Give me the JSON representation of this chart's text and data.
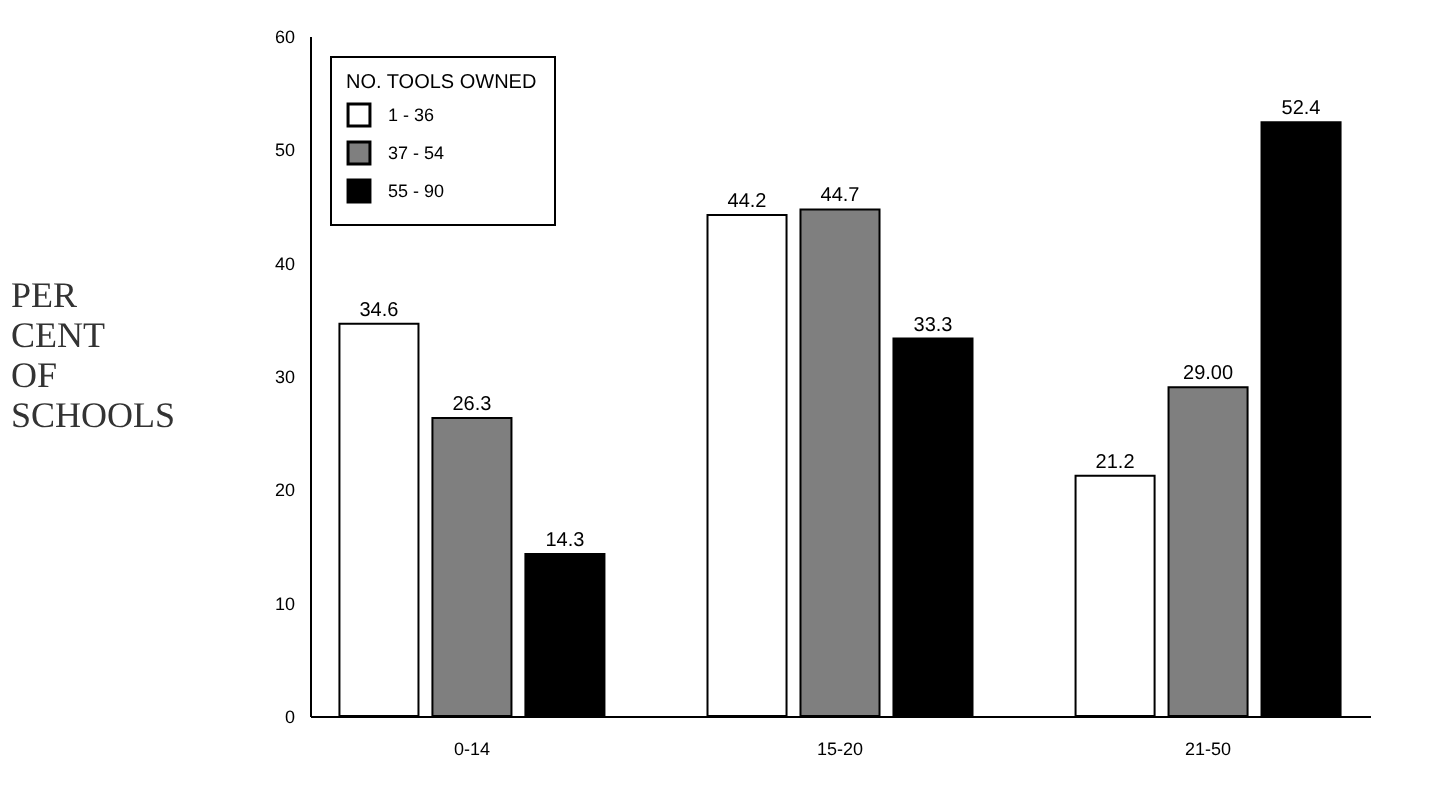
{
  "chart_data": {
    "type": "bar",
    "ylabel": "PER CENT OF SCHOOLS",
    "legend_title": "NO. TOOLS OWNED",
    "categories": [
      "0-14",
      "15-20",
      "21-50"
    ],
    "series": [
      {
        "name": "1 - 36",
        "color": "#ffffff",
        "values": [
          34.6,
          44.2,
          21.2
        ],
        "value_labels": [
          "34.6",
          "44.2",
          "21.2"
        ]
      },
      {
        "name": "37 - 54",
        "color": "#7f7f7f",
        "values": [
          26.3,
          44.7,
          29.0
        ],
        "value_labels": [
          "26.3",
          "44.7",
          "29.00"
        ]
      },
      {
        "name": "55 - 90",
        "color": "#000000",
        "values": [
          14.3,
          33.3,
          52.4
        ],
        "value_labels": [
          "14.3",
          "33.3",
          "52.4"
        ]
      }
    ],
    "ylim": [
      0,
      60
    ],
    "yticks": [
      0,
      10,
      20,
      30,
      40,
      50,
      60
    ],
    "grid": false,
    "legend": "top left"
  }
}
